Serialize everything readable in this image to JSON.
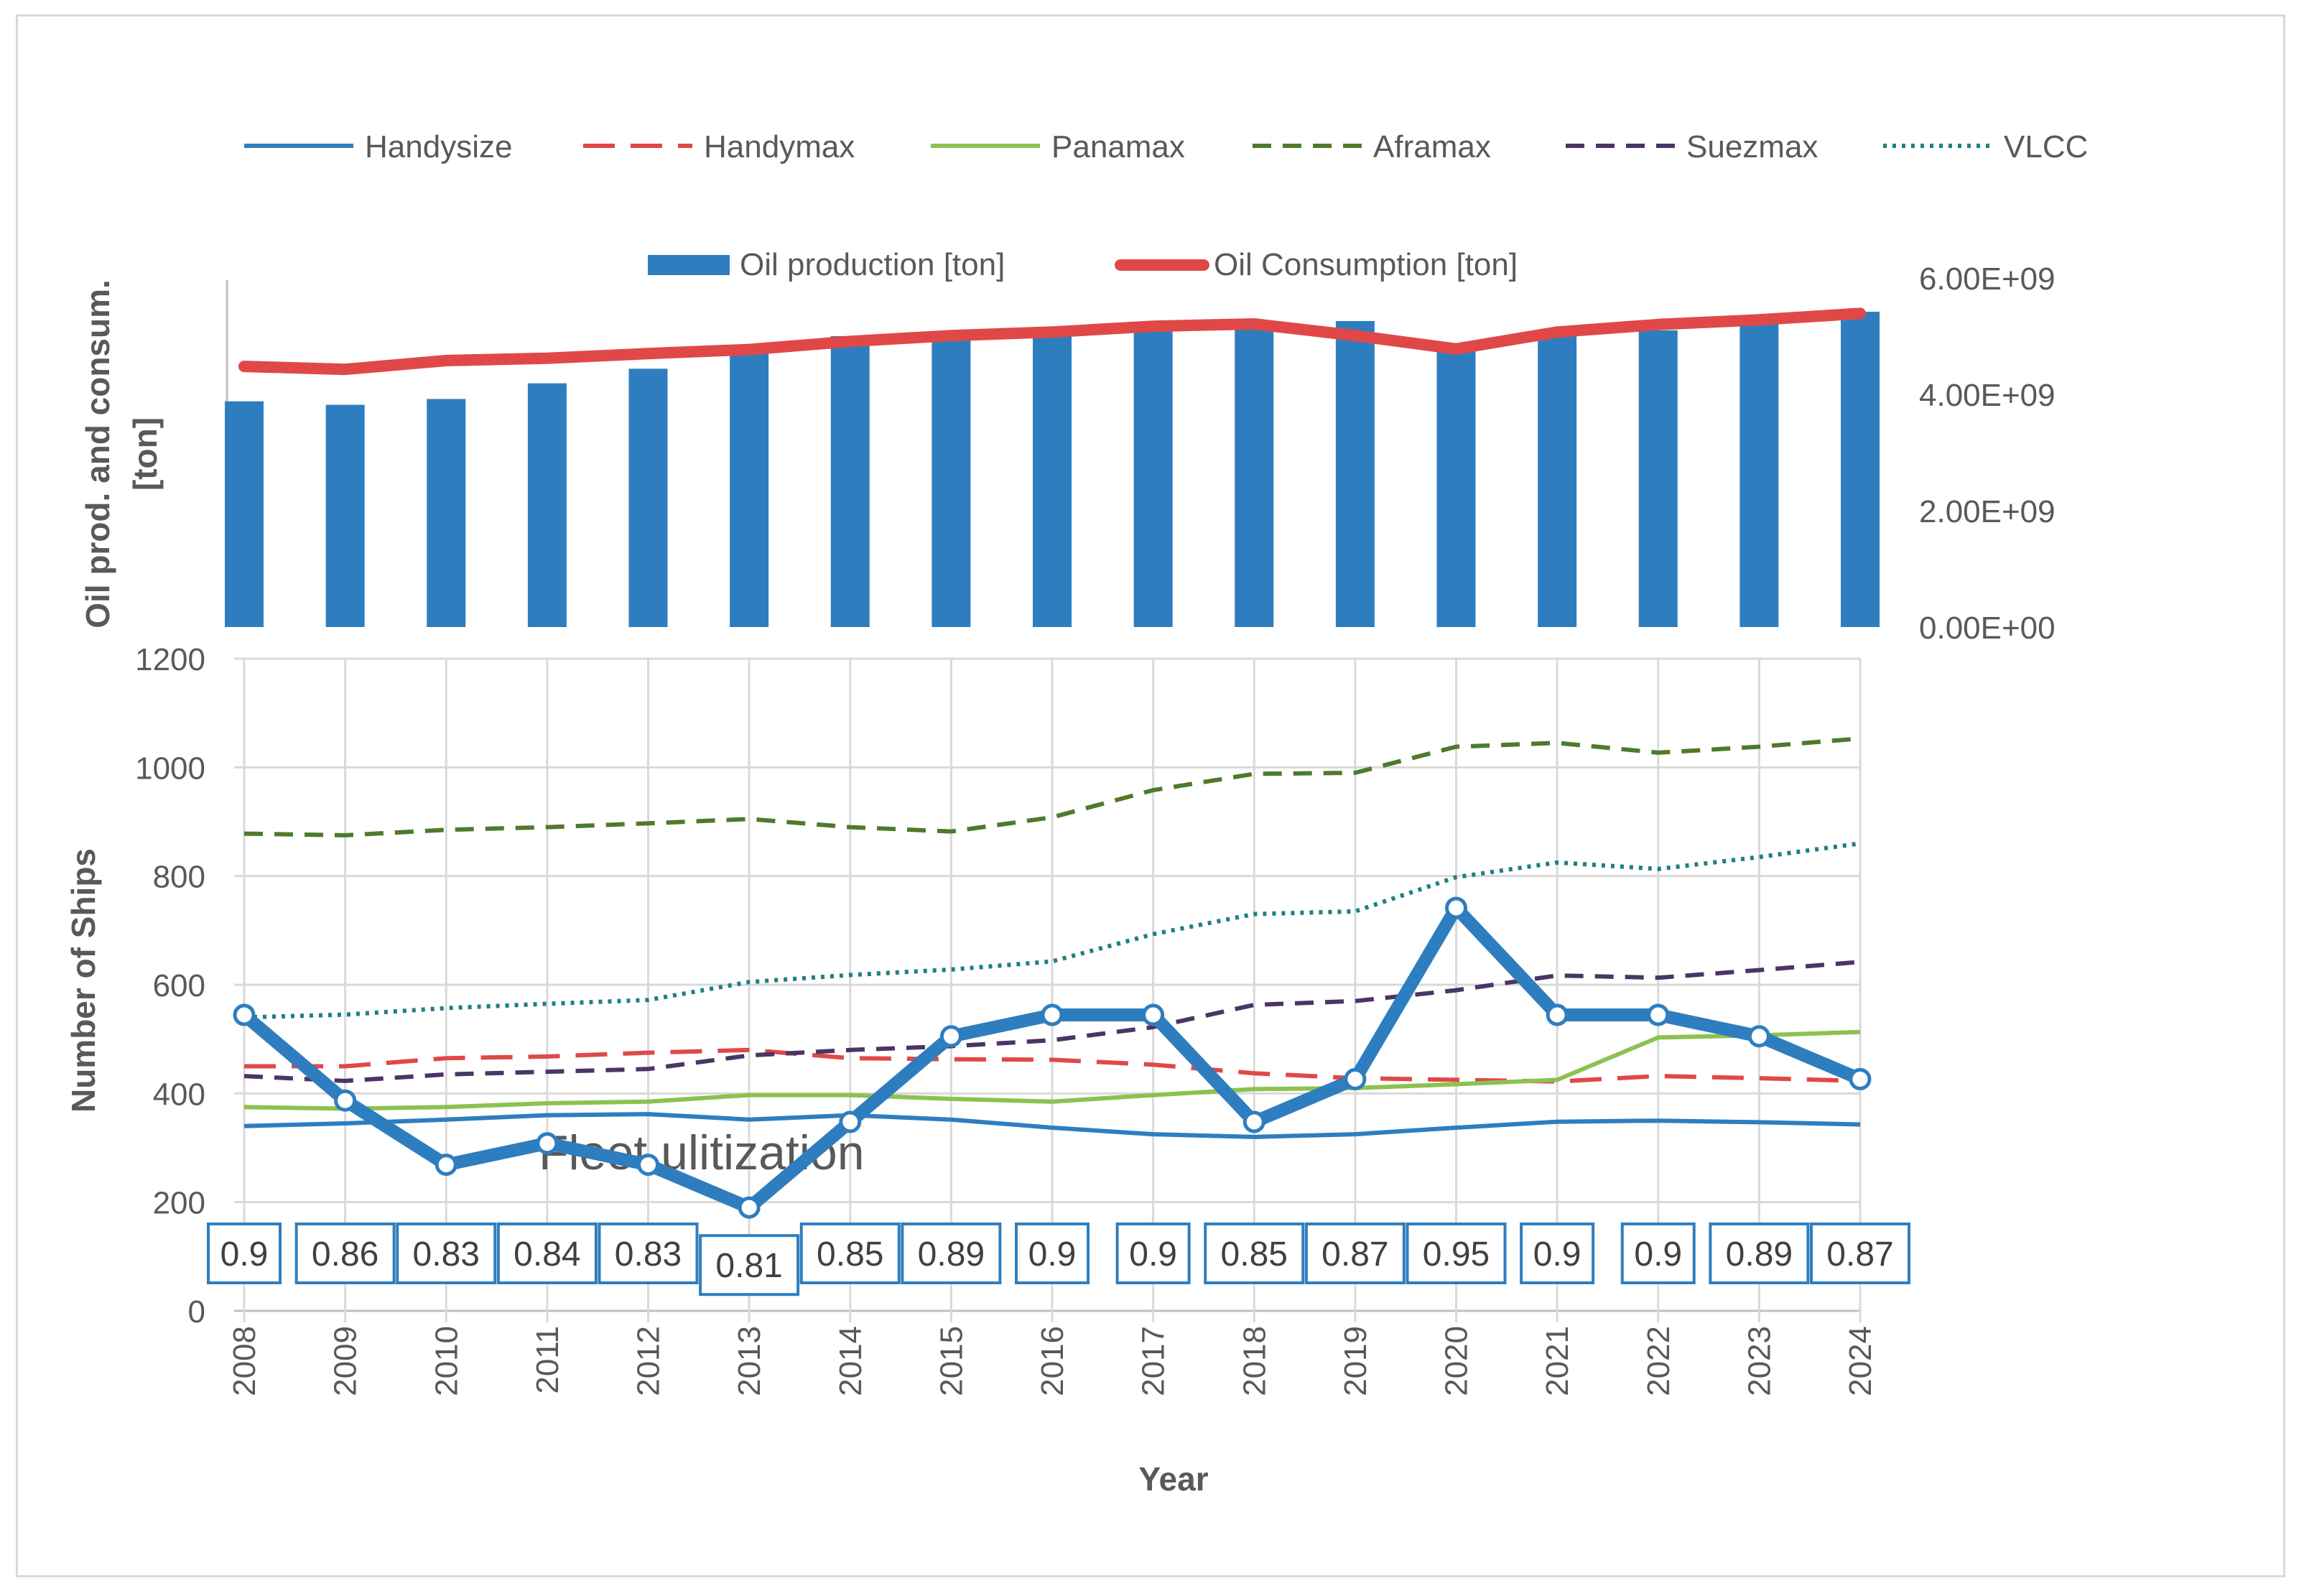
{
  "chart_data": [
    {
      "type": "bar",
      "panel": "top",
      "x": [
        "2008",
        "2009",
        "2010",
        "2011",
        "2012",
        "2013",
        "2014",
        "2015",
        "2016",
        "2017",
        "2018",
        "2019",
        "2020",
        "2021",
        "2022",
        "2023",
        "2024"
      ],
      "series": [
        {
          "name": "Oil production [ton]",
          "type": "bar",
          "color": "#2e7ebf",
          "values": [
            3880000000.0,
            3820000000.0,
            3920000000.0,
            4190000000.0,
            4440000000.0,
            4750000000.0,
            5000000000.0,
            5050000000.0,
            5080000000.0,
            5130000000.0,
            5160000000.0,
            5260000000.0,
            4780000000.0,
            5000000000.0,
            5100000000.0,
            5310000000.0,
            5420000000.0
          ]
        },
        {
          "name": "Oil Consumption [ton]",
          "type": "line",
          "color": "#e04848",
          "values": [
            4480000000.0,
            4430000000.0,
            4580000000.0,
            4620000000.0,
            4700000000.0,
            4770000000.0,
            4910000000.0,
            5010000000.0,
            5070000000.0,
            5170000000.0,
            5210000000.0,
            5010000000.0,
            4780000000.0,
            5070000000.0,
            5200000000.0,
            5280000000.0,
            5390000000.0
          ]
        }
      ],
      "ylabel": "Oil prod. and consum. [ton]",
      "ylim": [
        0,
        6000000000.0
      ],
      "ytick_labels": [
        "0.00E+00",
        "2.00E+09",
        "4.00E+09",
        "6.00E+09"
      ],
      "y_axis_side": "right",
      "grid": false,
      "legend": "top"
    },
    {
      "type": "line",
      "panel": "bottom",
      "x": [
        "2008",
        "2009",
        "2010",
        "2011",
        "2012",
        "2013",
        "2014",
        "2015",
        "2016",
        "2017",
        "2018",
        "2019",
        "2020",
        "2021",
        "2022",
        "2023",
        "2024"
      ],
      "xlabel": "Year",
      "ylabel": "Number of Ships",
      "ylim": [
        0,
        1200
      ],
      "ytick_labels": [
        "0",
        "200",
        "400",
        "600",
        "800",
        "1000",
        "1200"
      ],
      "grid": true,
      "legend": "top",
      "series": [
        {
          "name": "Handysize",
          "color": "#2e7ebf",
          "dash": "solid",
          "values": [
            340,
            345,
            352,
            360,
            362,
            352,
            360,
            352,
            337,
            325,
            320,
            325,
            337,
            348,
            350,
            347,
            343
          ]
        },
        {
          "name": "Handymax",
          "color": "#e04848",
          "dash": "longdash",
          "values": [
            450,
            450,
            465,
            468,
            475,
            480,
            465,
            463,
            462,
            453,
            437,
            428,
            425,
            422,
            432,
            428,
            423
          ]
        },
        {
          "name": "Panamax",
          "color": "#8dc150",
          "dash": "solid",
          "values": [
            375,
            372,
            375,
            382,
            385,
            397,
            397,
            390,
            385,
            397,
            408,
            410,
            417,
            425,
            503,
            507,
            513
          ]
        },
        {
          "name": "Aframax",
          "color": "#4e7a2a",
          "dash": "dash",
          "values": [
            878,
            875,
            885,
            890,
            897,
            905,
            890,
            882,
            908,
            958,
            988,
            990,
            1038,
            1045,
            1027,
            1038,
            1053
          ]
        },
        {
          "name": "Suezmax",
          "color": "#4a3566",
          "dash": "dash",
          "values": [
            432,
            423,
            435,
            440,
            445,
            470,
            480,
            487,
            498,
            522,
            563,
            570,
            590,
            617,
            613,
            627,
            642
          ]
        },
        {
          "name": "VLCC",
          "color": "#1f8080",
          "dash": "dot",
          "values": [
            540,
            545,
            557,
            565,
            572,
            605,
            618,
            628,
            643,
            693,
            730,
            735,
            798,
            825,
            813,
            835,
            860
          ]
        }
      ],
      "annotation": "Fleet ulitization",
      "fleet_utilization": {
        "color": "#2e7ebf",
        "values": [
          0.9,
          0.86,
          0.83,
          0.84,
          0.83,
          0.81,
          0.85,
          0.89,
          0.9,
          0.9,
          0.85,
          0.87,
          0.95,
          0.9,
          0.9,
          0.89,
          0.87
        ],
        "labels": [
          "0.9",
          "0.86",
          "0.83",
          "0.84",
          "0.83",
          "0.81",
          "0.85",
          "0.89",
          "0.9",
          "0.9",
          "0.85",
          "0.87",
          "0.95",
          "0.9",
          "0.9",
          "0.89",
          "0.87"
        ]
      }
    }
  ]
}
